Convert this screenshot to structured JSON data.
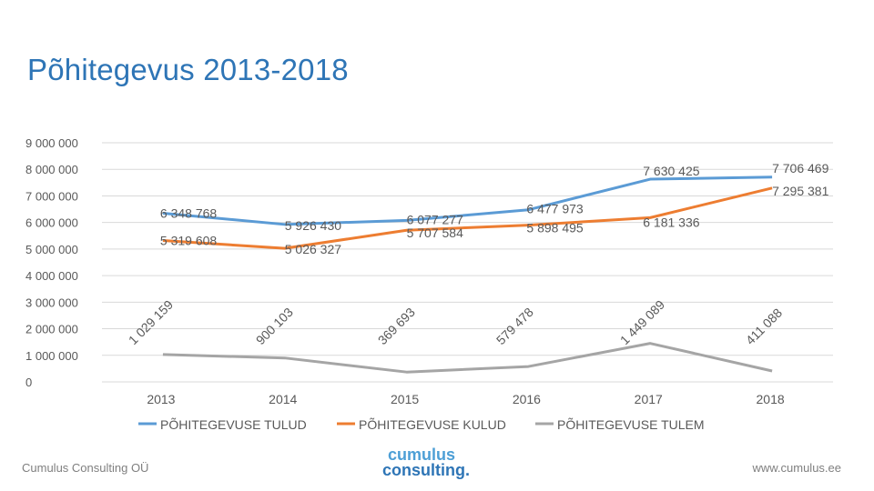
{
  "title": "Põhitegevus 2013-2018",
  "chart_data": {
    "type": "line",
    "title": "Põhitegevus 2013-2018",
    "categories": [
      "2013",
      "2014",
      "2015",
      "2016",
      "2017",
      "2018"
    ],
    "y_ticks": [
      "9 000 000",
      "8 000 000",
      "7 000 000",
      "6 000 000",
      "5 000 000",
      "4 000 000",
      "3 000 000",
      "2 000 000",
      "1 000 000",
      "0"
    ],
    "ylim": [
      0,
      9000000
    ],
    "legend_position": "bottom",
    "series": [
      {
        "name": "PÕHITEGEVUSE TULUD",
        "color": "#5b9bd5",
        "values": [
          6348768,
          5926430,
          6077277,
          6477973,
          7630425,
          7706469
        ],
        "labels": [
          "6 348 768",
          "5 926 430",
          "6 077 277",
          "6 477 973",
          "7 630 425",
          "7 706 469"
        ]
      },
      {
        "name": "PÕHITEGEVUSE KULUD",
        "color": "#ed7d31",
        "values": [
          5319608,
          5026327,
          5707584,
          5898495,
          6181336,
          7295381
        ],
        "labels": [
          "5 319 608",
          "5 026 327",
          "5 707 584",
          "5 898 495",
          "6 181 336",
          "7 295 381"
        ]
      },
      {
        "name": "PÕHITEGEVUSE TULEM",
        "color": "#a5a5a5",
        "values": [
          1029159,
          900103,
          369693,
          579478,
          1449089,
          411088
        ],
        "labels": [
          "1 029 159",
          "900 103",
          "369 693",
          "579 478",
          "1 449 089",
          "411 088"
        ]
      }
    ]
  },
  "footer": {
    "left": "Cumulus Consulting OÜ",
    "right": "www.cumulus.ee"
  },
  "logo": {
    "line1": "cumulus",
    "line2": "consulting."
  }
}
